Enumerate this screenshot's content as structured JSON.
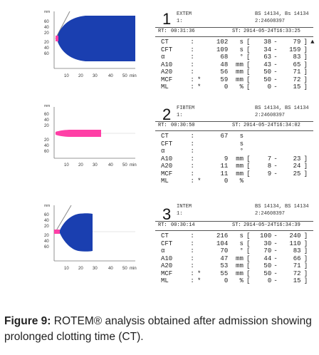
{
  "panels": [
    {
      "number": "1",
      "test": "EXTEM",
      "channel": "1:",
      "sample_a": "BS 14134, Bs 14134",
      "sample_b": "2:24608397",
      "rt_label": "RT:",
      "rt_value": "00:31:36",
      "st_label": "ST:",
      "st_value": "2014-05-24T16:33:25",
      "curve_color": "#1a3fb0",
      "params": [
        {
          "name": "CT",
          "colon": ":",
          "star": "",
          "value": "102",
          "unit": "s",
          "lo": "38",
          "hi": "79",
          "flag": "▲"
        },
        {
          "name": "CFT",
          "colon": ":",
          "star": "",
          "value": "109",
          "unit": "s",
          "lo": "34",
          "hi": "159",
          "flag": ""
        },
        {
          "name": "α",
          "colon": ":",
          "star": "",
          "value": "68",
          "unit": "°",
          "lo": "63",
          "hi": "83",
          "flag": ""
        },
        {
          "name": "A10",
          "colon": ":",
          "star": "",
          "value": "48",
          "unit": "mm",
          "lo": "43",
          "hi": "65",
          "flag": ""
        },
        {
          "name": "A20",
          "colon": ":",
          "star": "",
          "value": "56",
          "unit": "mm",
          "lo": "50",
          "hi": "71",
          "flag": ""
        },
        {
          "name": "MCF",
          "colon": ":",
          "star": "*",
          "value": "59",
          "unit": "mm",
          "lo": "50",
          "hi": "72",
          "flag": ""
        },
        {
          "name": "ML",
          "colon": ":",
          "star": "*",
          "value": "0",
          "unit": "%",
          "lo": "0",
          "hi": "15",
          "flag": ""
        }
      ]
    },
    {
      "number": "2",
      "test": "FIBTEM",
      "channel": "1:",
      "sample_a": "BS 14134, BS 14134",
      "sample_b": "2:24608397",
      "rt_label": "RT:",
      "rt_value": "00:30:50",
      "st_label": "ST:",
      "st_value": "2014-05-24T16:34:02",
      "curve_color": "#ff3fa6",
      "params": [
        {
          "name": "CT",
          "colon": ":",
          "star": "",
          "value": "67",
          "unit": "s",
          "lo": "",
          "hi": "",
          "flag": ""
        },
        {
          "name": "CFT",
          "colon": ":",
          "star": "",
          "value": "",
          "unit": "s",
          "lo": "",
          "hi": "",
          "flag": ""
        },
        {
          "name": "α",
          "colon": ":",
          "star": "",
          "value": "",
          "unit": "°",
          "lo": "",
          "hi": "",
          "flag": ""
        },
        {
          "name": "A10",
          "colon": ":",
          "star": "",
          "value": "9",
          "unit": "mm",
          "lo": "7",
          "hi": "23",
          "flag": ""
        },
        {
          "name": "A20",
          "colon": ":",
          "star": "",
          "value": "11",
          "unit": "mm",
          "lo": "8",
          "hi": "24",
          "flag": ""
        },
        {
          "name": "MCF",
          "colon": ":",
          "star": "",
          "value": "11",
          "unit": "mm",
          "lo": "9",
          "hi": "25",
          "flag": ""
        },
        {
          "name": "ML",
          "colon": ":",
          "star": "*",
          "value": "0",
          "unit": "%",
          "lo": "",
          "hi": "",
          "flag": ""
        }
      ]
    },
    {
      "number": "3",
      "test": "INTEM",
      "channel": "1:",
      "sample_a": "BS 14134, BS 14134",
      "sample_b": "2:24608397",
      "rt_label": "RT:",
      "rt_value": "00:30:14",
      "st_label": "ST:",
      "st_value": "2014-05-24T16:34:39",
      "curve_color": "#1a3fb0",
      "params": [
        {
          "name": "CT",
          "colon": ":",
          "star": "",
          "value": "216",
          "unit": "s",
          "lo": "100",
          "hi": "240",
          "flag": ""
        },
        {
          "name": "CFT",
          "colon": ":",
          "star": "",
          "value": "104",
          "unit": "s",
          "lo": "30",
          "hi": "110",
          "flag": ""
        },
        {
          "name": "α",
          "colon": ":",
          "star": "",
          "value": "70",
          "unit": "°",
          "lo": "70",
          "hi": "83",
          "flag": ""
        },
        {
          "name": "A10",
          "colon": ":",
          "star": "",
          "value": "47",
          "unit": "mm",
          "lo": "44",
          "hi": "66",
          "flag": ""
        },
        {
          "name": "A20",
          "colon": ":",
          "star": "",
          "value": "53",
          "unit": "mm",
          "lo": "50",
          "hi": "71",
          "flag": ""
        },
        {
          "name": "MCF",
          "colon": ":",
          "star": "*",
          "value": "55",
          "unit": "mm",
          "lo": "50",
          "hi": "72",
          "flag": ""
        },
        {
          "name": "ML",
          "colon": ":",
          "star": "*",
          "value": "0",
          "unit": "%",
          "lo": "0",
          "hi": "15",
          "flag": ""
        }
      ]
    }
  ],
  "axis": {
    "unit_left": "mm",
    "y_ticks": [
      "60",
      "40",
      "20",
      "20",
      "40",
      "60"
    ],
    "x_ticks": [
      "10",
      "20",
      "30",
      "40",
      "50"
    ],
    "x_unit": "min"
  },
  "caption": {
    "label": "Figure 9:",
    "text": " ROTEM® analysis obtained after admission showing prolonged clotting time (CT)."
  }
}
